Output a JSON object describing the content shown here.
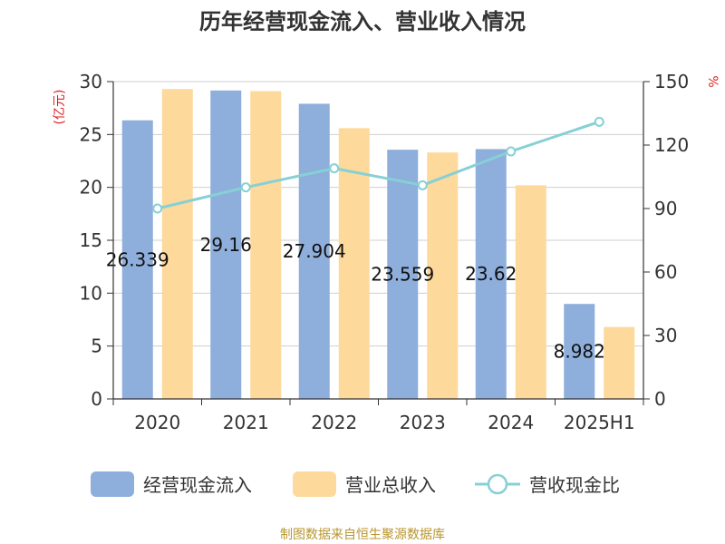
{
  "chart_data": {
    "type": "bar",
    "title": "历年经营现金流入、营业收入情况",
    "categories": [
      "2020",
      "2021",
      "2022",
      "2023",
      "2024",
      "2025H1"
    ],
    "series": [
      {
        "name": "经营现金流入",
        "kind": "bar",
        "axis": "left",
        "color": "#8eaedb",
        "values": [
          26.339,
          29.16,
          27.904,
          23.559,
          23.62,
          8.982
        ],
        "labels": [
          "26.339",
          "29.16",
          "27.904",
          "23.559",
          "23.62",
          "8.982"
        ]
      },
      {
        "name": "营业总收入",
        "kind": "bar",
        "axis": "left",
        "color": "#fdd99b",
        "values": [
          29.3,
          29.1,
          25.6,
          23.3,
          20.2,
          6.8
        ]
      },
      {
        "name": "营收现金比",
        "kind": "line",
        "axis": "right",
        "color": "#86d0d6",
        "values": [
          90,
          100,
          109,
          101,
          117,
          131
        ]
      }
    ],
    "y_left": {
      "unit": "(亿元)",
      "min": 0,
      "max": 30,
      "ticks": [
        0,
        5,
        10,
        15,
        20,
        25,
        30
      ]
    },
    "y_right": {
      "unit": "%",
      "min": 0,
      "max": 150,
      "ticks": [
        0,
        30,
        60,
        90,
        120,
        150
      ]
    },
    "grid": true,
    "legend_position": "bottom"
  },
  "footer": "制图数据来自恒生聚源数据库"
}
